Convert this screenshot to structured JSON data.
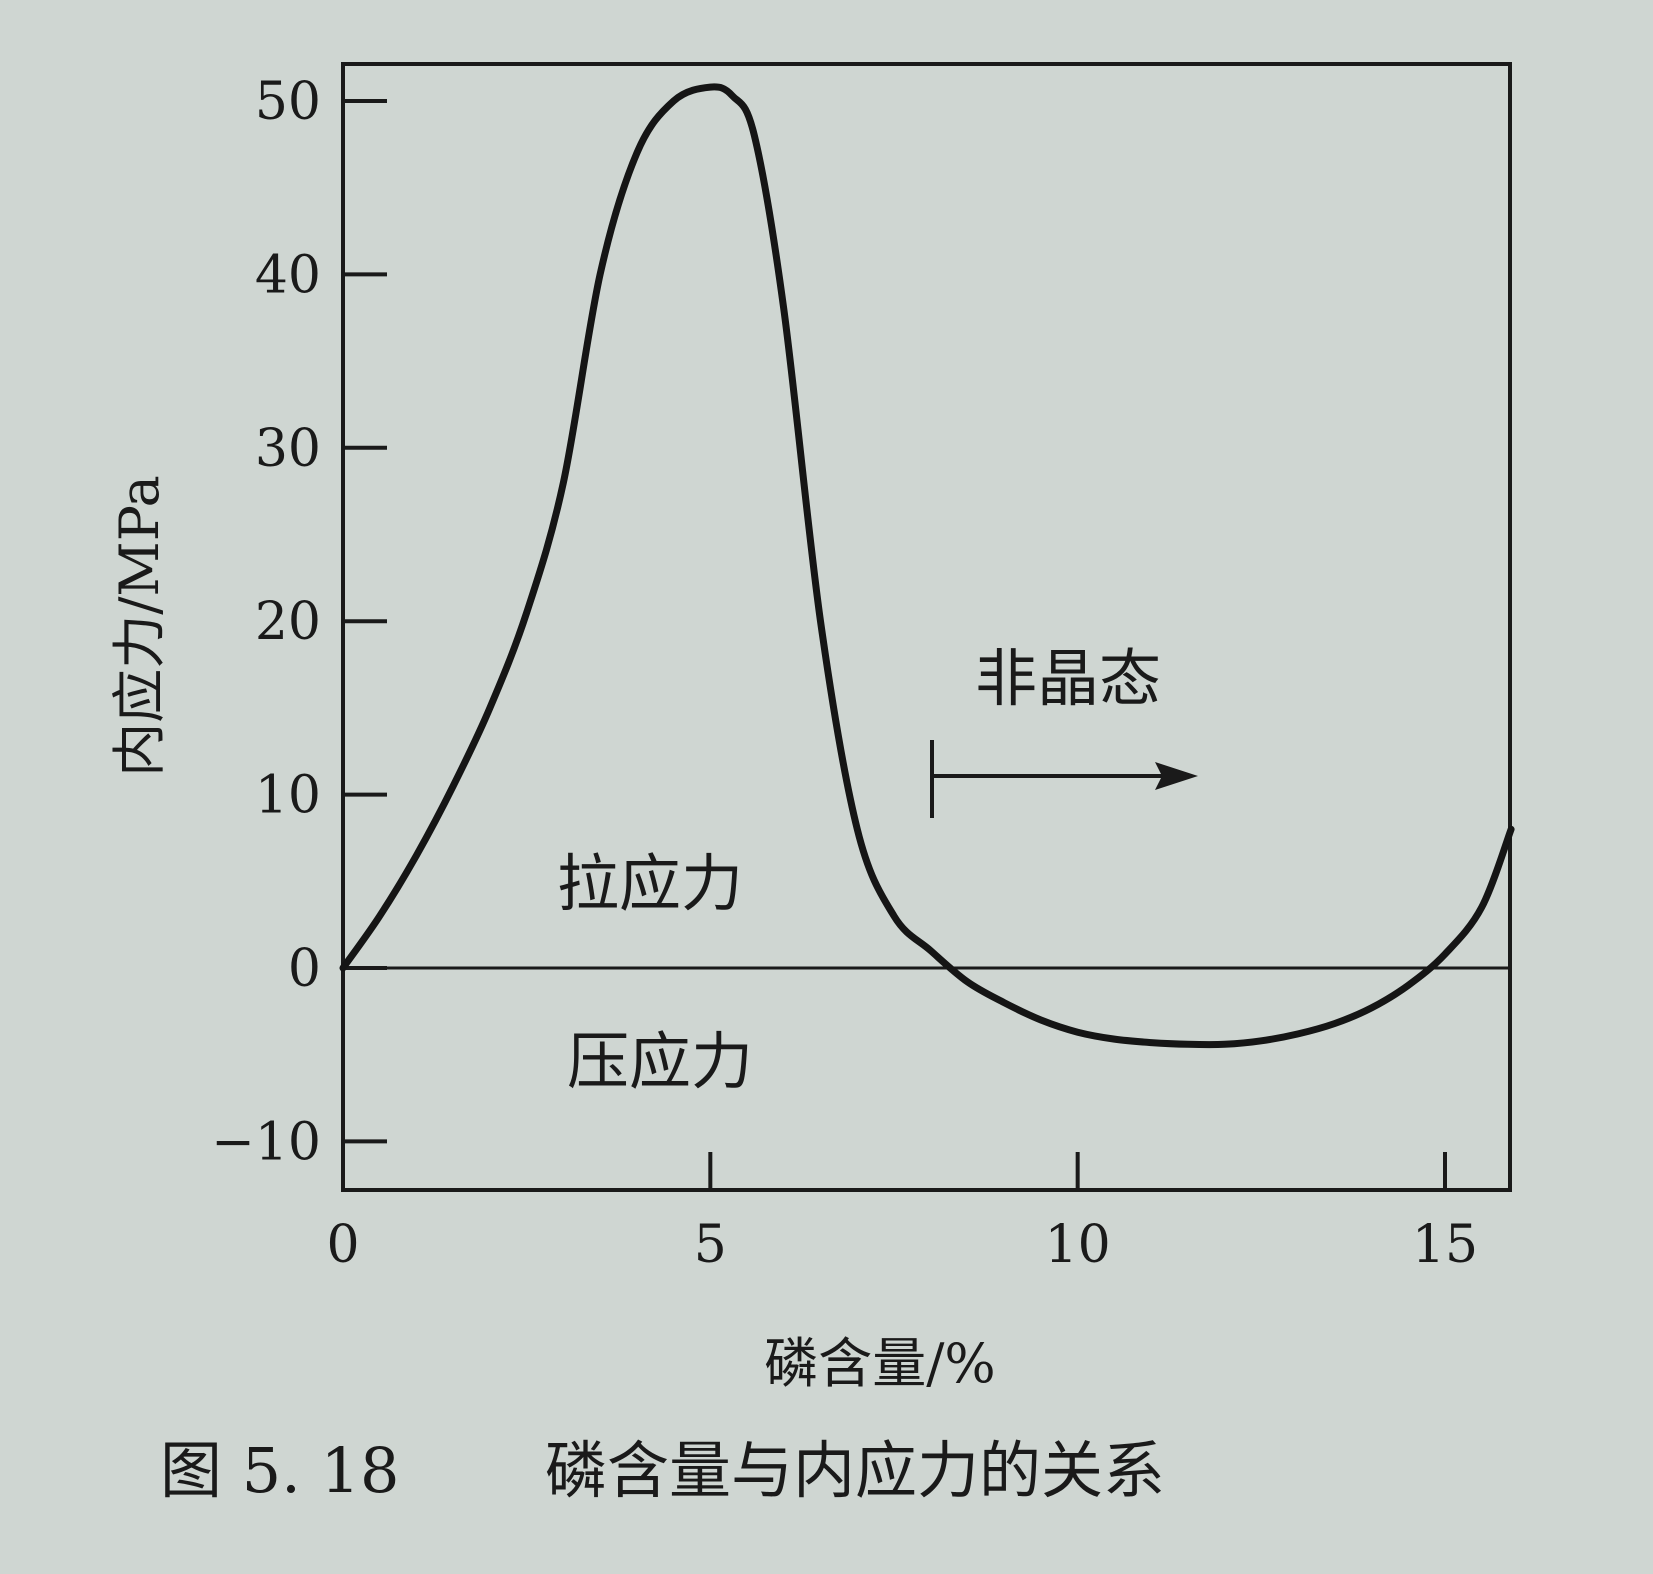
{
  "chart_data": {
    "type": "line",
    "caption_number": "图 5. 18",
    "caption_title": "磷含量与内应力的关系",
    "xlabel": "磷含量/%",
    "ylabel": "内应力/MPa",
    "xlim": [
      0,
      16
    ],
    "ylim": [
      -13,
      52
    ],
    "x_ticks": [
      0,
      5,
      10,
      15
    ],
    "x_tick_labels": [
      "0",
      "5",
      "10",
      "15"
    ],
    "y_ticks": [
      -10,
      0,
      10,
      20,
      30,
      40,
      50
    ],
    "y_tick_labels": [
      "−10",
      "0",
      "10",
      "20",
      "30",
      "40",
      "50"
    ],
    "grid": false,
    "series": [
      {
        "x": [
          0,
          0.5,
          1,
          1.5,
          2,
          2.5,
          3,
          3.5,
          4,
          4.5,
          5,
          5.3,
          5.6,
          6,
          6.5,
          7,
          7.5,
          8,
          8.5,
          9,
          9.5,
          10,
          10.5,
          11,
          11.5,
          12,
          12.5,
          13,
          13.5,
          14,
          14.5,
          15,
          15.5,
          15.9
        ],
        "y": [
          0,
          3,
          6.5,
          10.5,
          15,
          20.5,
          28,
          40,
          47,
          50,
          50.8,
          50.3,
          48,
          38,
          20,
          8,
          3,
          1,
          -0.8,
          -2,
          -3,
          -3.7,
          -4.1,
          -4.3,
          -4.4,
          -4.4,
          -4.2,
          -3.8,
          -3.2,
          -2.3,
          -1,
          0.8,
          3.5,
          8
        ]
      }
    ],
    "annotations": {
      "tensile": "拉应力",
      "compressive": "压应力",
      "amorphous": "非晶态"
    }
  }
}
